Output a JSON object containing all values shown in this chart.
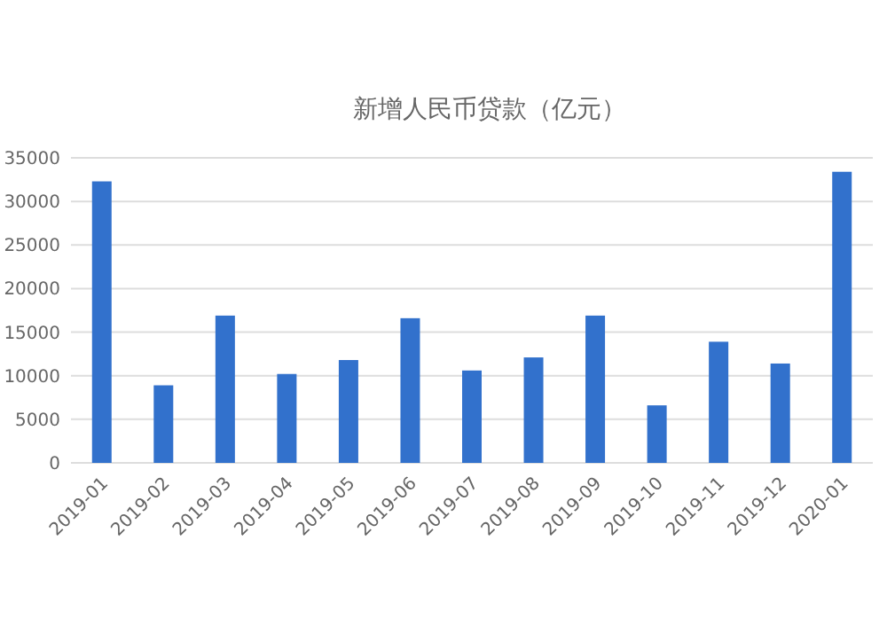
{
  "chart_data": {
    "type": "bar",
    "title": "新增人民币贷款（亿元）",
    "categories": [
      "2019-01",
      "2019-02",
      "2019-03",
      "2019-04",
      "2019-05",
      "2019-06",
      "2019-07",
      "2019-08",
      "2019-09",
      "2019-10",
      "2019-11",
      "2019-12",
      "2020-01"
    ],
    "values": [
      32300,
      8900,
      16900,
      10200,
      11800,
      16600,
      10600,
      12100,
      16900,
      6600,
      13900,
      11400,
      33400
    ],
    "color": "#3271cc",
    "ylim": [
      0,
      35000
    ],
    "yticks": [
      0,
      5000,
      10000,
      15000,
      20000,
      25000,
      30000,
      35000
    ],
    "grid": "y"
  }
}
